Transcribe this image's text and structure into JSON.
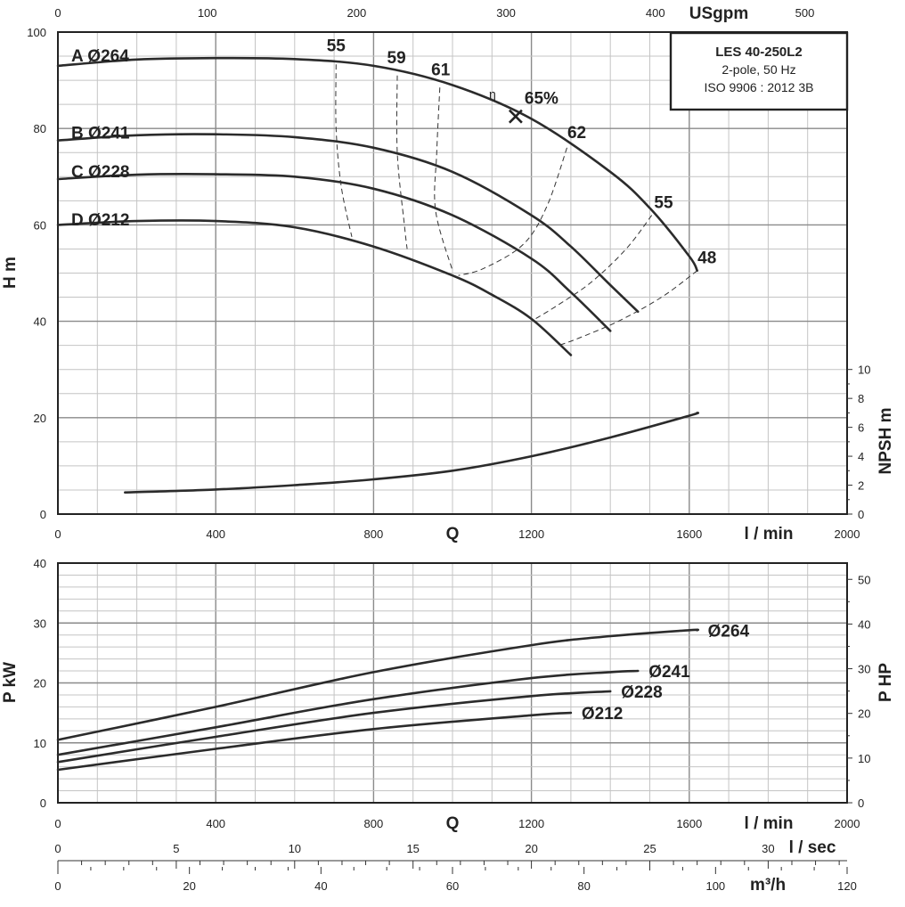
{
  "legend_box": {
    "title": "LES 40-250L2",
    "line1": "2-pole, 50 Hz",
    "line2": "ISO 9906 : 2012 3B"
  },
  "chart_data": [
    {
      "name": "head",
      "type": "line",
      "x_unit": "l / min",
      "x_label": "Q",
      "xlim": [
        0,
        2000
      ],
      "x_ticks": [
        0,
        400,
        800,
        1200,
        1600,
        2000
      ],
      "ylabel": "H m",
      "ylim": [
        0,
        100
      ],
      "y_ticks": [
        0,
        20,
        40,
        60,
        80,
        100
      ],
      "top_axis": {
        "label": "USgpm",
        "ticks": [
          0,
          100,
          200,
          300,
          400,
          500
        ],
        "lpm_per_unit": 3.78541
      },
      "series": [
        {
          "label": "A Ø264",
          "x": [
            0,
            200,
            400,
            600,
            800,
            1000,
            1200,
            1400,
            1500,
            1600,
            1620
          ],
          "y": [
            93,
            94.3,
            94.6,
            94.4,
            93,
            89,
            82,
            71,
            63.5,
            53.5,
            50.5
          ]
        },
        {
          "label": "B Ø241",
          "x": [
            0,
            200,
            400,
            600,
            800,
            1000,
            1200,
            1300,
            1400,
            1470
          ],
          "y": [
            77.5,
            78.6,
            78.8,
            78.2,
            76,
            71,
            62,
            55.5,
            47.5,
            42
          ]
        },
        {
          "label": "C Ø228",
          "x": [
            0,
            200,
            400,
            600,
            800,
            1000,
            1200,
            1300,
            1400
          ],
          "y": [
            69.5,
            70.4,
            70.5,
            70,
            67.5,
            62,
            53,
            46,
            38
          ]
        },
        {
          "label": "D Ø212",
          "x": [
            0,
            200,
            400,
            600,
            800,
            1000,
            1100,
            1200,
            1300
          ],
          "y": [
            60,
            60.8,
            60.8,
            59.5,
            55.5,
            49.5,
            45.5,
            40.5,
            33
          ]
        }
      ],
      "efficiency": {
        "symbol": "η",
        "bep": {
          "label": "65%",
          "x": 1160,
          "y": 82.5
        },
        "lines": [
          {
            "label": "55",
            "x": [
              705,
              705,
              718,
              745
            ],
            "y": [
              93.3,
              80,
              68,
              57.5
            ]
          },
          {
            "label": "59",
            "x": [
              860,
              860,
              878,
              885
            ],
            "y": [
              91,
              75,
              60,
              55
            ]
          },
          {
            "label": "61",
            "x": [
              968,
              960,
              957,
              1000
            ],
            "y": [
              88.5,
              75,
              63,
              50.5
            ]
          },
          {
            "label": "62",
            "x": [
              1290,
              1240,
              1180,
              1080,
              1015
            ],
            "y": [
              76,
              64,
              56,
              51,
              49.5
            ]
          },
          {
            "label": "55",
            "x": [
              1505,
              1440,
              1350,
              1260,
              1210
            ],
            "y": [
              62,
              55,
              48,
              43,
              40.5
            ]
          },
          {
            "label": "48",
            "x": [
              1620,
              1530,
              1420,
              1320,
              1270
            ],
            "y": [
              50.5,
              45,
              40,
              36.5,
              35
            ]
          }
        ],
        "label_pos": [
          {
            "label": "55",
            "x": 705,
            "y": 96
          },
          {
            "label": "59",
            "x": 858,
            "y": 93.5
          },
          {
            "label": "61",
            "x": 970,
            "y": 91
          },
          {
            "label": "62",
            "x": 1315,
            "y": 78
          },
          {
            "label": "55",
            "x": 1535,
            "y": 63.5
          },
          {
            "label": "48",
            "x": 1645,
            "y": 52
          }
        ]
      },
      "npsh": {
        "ylabel": "NPSH m",
        "ylim": [
          0,
          10
        ],
        "y_ticks": [
          0,
          2,
          4,
          6,
          8,
          10
        ],
        "x": [
          170,
          400,
          600,
          800,
          1000,
          1200,
          1400,
          1600,
          1620
        ],
        "y": [
          1.5,
          1.7,
          2.0,
          2.4,
          3.0,
          4.0,
          5.3,
          6.8,
          7.0
        ]
      }
    },
    {
      "name": "power",
      "type": "line",
      "x_unit": "l / min",
      "x_label": "Q",
      "xlim": [
        0,
        2000
      ],
      "x_ticks": [
        0,
        400,
        800,
        1200,
        1600,
        2000
      ],
      "ylabel": "P kW",
      "ylim": [
        0,
        40
      ],
      "y_ticks": [
        0,
        10,
        20,
        30,
        40
      ],
      "right_axis": {
        "label": "P HP",
        "ticks": [
          0,
          10,
          20,
          30,
          40,
          50
        ],
        "kw_per_unit": 0.7457
      },
      "series": [
        {
          "label": "Ø264",
          "x": [
            0,
            400,
            800,
            1200,
            1400,
            1600,
            1620
          ],
          "y": [
            10.5,
            16,
            21.8,
            26.3,
            27.8,
            28.8,
            28.8
          ]
        },
        {
          "label": "Ø241",
          "x": [
            0,
            400,
            800,
            1200,
            1400,
            1470
          ],
          "y": [
            8,
            12.6,
            17.3,
            20.8,
            21.8,
            22
          ]
        },
        {
          "label": "Ø228",
          "x": [
            0,
            400,
            800,
            1200,
            1400
          ],
          "y": [
            6.8,
            11,
            15,
            17.8,
            18.6
          ]
        },
        {
          "label": "Ø212",
          "x": [
            0,
            400,
            800,
            1200,
            1300
          ],
          "y": [
            5.5,
            9,
            12.3,
            14.6,
            15
          ]
        }
      ]
    }
  ],
  "bottom_axes": {
    "lsec": {
      "label": "l / sec",
      "ticks": [
        0,
        5,
        10,
        15,
        20,
        25,
        30
      ],
      "lpm_per_unit": 60
    },
    "m3h": {
      "label": "m³/h",
      "ticks": [
        0,
        20,
        40,
        60,
        80,
        100,
        120
      ],
      "lpm_per_unit": 16.6667
    }
  }
}
